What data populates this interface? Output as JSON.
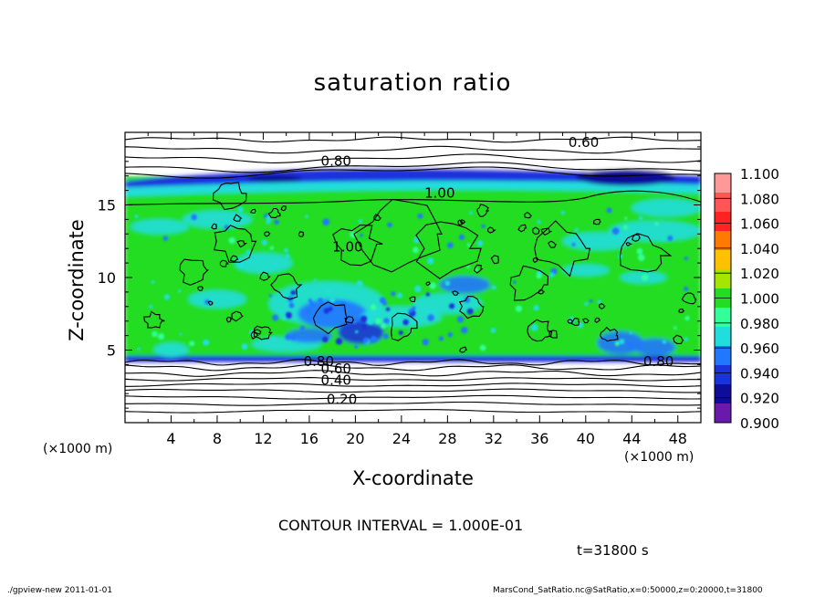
{
  "page": {
    "footer_left": "./gpview-new   2011-01-01",
    "footer_right": "MarsCond_SatRatio.nc@SatRatio,x=0:50000,z=0:20000,t=31800"
  },
  "chart_data": {
    "type": "heatmap",
    "title": "saturation ratio",
    "xlabel": "X-coordinate",
    "ylabel": "Z-coordinate",
    "x_unit_left": "(×1000 m)",
    "x_unit_right": "(×1000 m)",
    "xlim": [
      0,
      50
    ],
    "ylim": [
      0,
      20
    ],
    "x_ticks": [
      4,
      8,
      12,
      16,
      20,
      24,
      28,
      32,
      36,
      40,
      44,
      48
    ],
    "x_tick_labels": [
      "4",
      "8",
      "12",
      "16",
      "20",
      "24",
      "28",
      "32",
      "36",
      "40",
      "44",
      "48"
    ],
    "y_ticks": [
      5,
      10,
      15
    ],
    "y_tick_labels": [
      "5",
      "10",
      "15"
    ],
    "contour_interval": "CONTOUR INTERVAL = 1.000E-01",
    "time_label": "t=31800 s",
    "contour_labels": [
      {
        "text": "0.60",
        "x": 38.5,
        "z": 19.0
      },
      {
        "text": "0.80",
        "x": 17.0,
        "z": 17.7
      },
      {
        "text": "1.00",
        "x": 26.0,
        "z": 15.5
      },
      {
        "text": "1.00",
        "x": 18.0,
        "z": 11.8
      },
      {
        "text": "0.80",
        "x": 15.5,
        "z": 3.9
      },
      {
        "text": "0.60",
        "x": 17.0,
        "z": 3.4
      },
      {
        "text": "0.40",
        "x": 17.0,
        "z": 2.6
      },
      {
        "text": "0.20",
        "x": 17.5,
        "z": 1.3
      },
      {
        "text": "0.80",
        "x": 45.0,
        "z": 3.9
      }
    ],
    "colorbar": {
      "levels": [
        "1.100",
        "1.080",
        "1.060",
        "1.040",
        "1.020",
        "1.000",
        "0.980",
        "0.960",
        "0.940",
        "0.920",
        "0.900"
      ],
      "colors": [
        "#ff9999",
        "#ff5555",
        "#ff2222",
        "#ff7a00",
        "#ffc000",
        "#a4e600",
        "#22dd22",
        "#33ff99",
        "#22dddd",
        "#2277ff",
        "#1a33dd",
        "#0d0d99",
        "#6a1aaa"
      ]
    }
  }
}
